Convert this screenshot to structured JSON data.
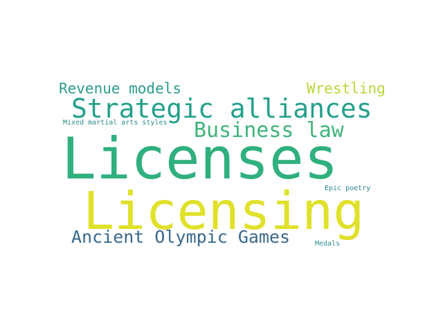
{
  "word_cloud": {
    "words": [
      {
        "key": "revenue",
        "text": "Revenue models",
        "color": "#2a9c8a"
      },
      {
        "key": "wrestling",
        "text": "Wrestling",
        "color": "#b5d83a"
      },
      {
        "key": "strategic",
        "text": "Strategic alliances",
        "color": "#23a08a"
      },
      {
        "key": "mixed",
        "text": "Mixed martial arts styles",
        "color": "#2e8a8c"
      },
      {
        "key": "business",
        "text": "Business law",
        "color": "#3fb47a"
      },
      {
        "key": "licenses",
        "text": "Licenses",
        "color": "#2fb07e"
      },
      {
        "key": "epic",
        "text": "Epic poetry",
        "color": "#2c848e"
      },
      {
        "key": "licensing",
        "text": "Licensing",
        "color": "#e0e12a"
      },
      {
        "key": "ancient",
        "text": "Ancient Olympic Games",
        "color": "#39688c"
      },
      {
        "key": "medals",
        "text": "Medals",
        "color": "#2f8e8c"
      }
    ]
  }
}
